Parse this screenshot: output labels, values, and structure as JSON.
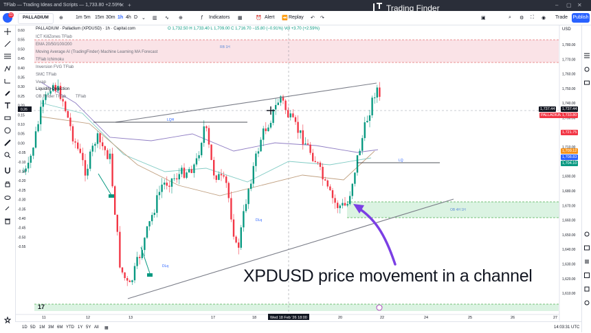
{
  "browser": {
    "tab_title": "TFlab — Trading Ideas and Scripts —",
    "tab_price": "1,733.80 +2.59%",
    "new_tab": "+"
  },
  "toolbar": {
    "notifications": "11",
    "symbol": "PALLADIUM",
    "timeframes": [
      "1m",
      "5m",
      "15m",
      "30m",
      "1h",
      "4h",
      "D"
    ],
    "active_timeframe": "1h",
    "indicators_label": "Indicators",
    "alert_label": "Alert",
    "replay_label": "Replay",
    "trade_label": "Trade",
    "publish_label": "Publish"
  },
  "watermark": {
    "brand": "Trading Finder"
  },
  "legend": {
    "title": "PALLADIUM · Palladium (XPDUSD) · 1h · Capital.com",
    "ohlc": "O 1,732.50 H 1,733.40 L 1,709.00 C 1,716.70 −15.80 (−0.91%) Vol +3.70 (+2.59%)",
    "currency": "USD",
    "indicators": [
      "ICT KillZones TFlab",
      "EMA 20/50/100/200",
      "Moving Average AI (TradingFinder) Machine Learning MA Forecast",
      "TFlab Ichimoku",
      "Inversion FVG TFlab",
      "SMC TFlab",
      "Vwap",
      "Liquidity Detection",
      "OB Finder TFlab",
      "TFlab"
    ]
  },
  "chart": {
    "annotations": {
      "rb_1h": "RB 1H",
      "lqh": "LQH",
      "lq": "LQ",
      "ob_4h": "OB 4H 1H",
      "dlq_a": "DLq",
      "dlq_b": "DLq"
    },
    "left_axis": [
      "0.60",
      "0.55",
      "0.50",
      "0.45",
      "0.40",
      "0.35",
      "0.30",
      "0.25",
      "0.20",
      "0.15",
      "0.10",
      "0.05",
      "0.00",
      "-0.05",
      "-0.10",
      "-0.15",
      "-0.20",
      "-0.25",
      "-0.30",
      "-0.35",
      "-0.40",
      "-0.45",
      "-0.50",
      "-0.55"
    ],
    "left_axis_current": "0.26",
    "right_axis": [
      "1,780.00",
      "1,770.00",
      "1,760.00",
      "1,750.00",
      "1,740.00",
      "1,730.00",
      "1,720.00",
      "1,710.00",
      "1,700.00",
      "1,690.00",
      "1,680.00",
      "1,670.00",
      "1,660.00",
      "1,650.00",
      "1,640.00",
      "1,630.00",
      "1,620.00",
      "1,610.00"
    ],
    "price_labels": {
      "a": "1,737.44",
      "symbol": "PALLADIUM",
      "b": "1,733.80",
      "c": "1,721.75",
      "d": "1,709.12",
      "e": "1,708.83",
      "f": "1,704.10"
    },
    "label_colors": {
      "up": "#089981",
      "down": "#f23645",
      "blue": "#2962ff",
      "orange": "#f7931a",
      "dark": "#131722"
    },
    "time_axis": [
      "11",
      "12",
      "13",
      "17",
      "18",
      "20",
      "22",
      "24",
      "25",
      "26",
      "27"
    ],
    "time_highlight": "Wed 18 Feb '26  18:00",
    "caption": "XPDUSD price movement in a channel"
  },
  "bottom": {
    "ranges": [
      "1D",
      "5D",
      "1M",
      "3M",
      "6M",
      "YTD",
      "1Y",
      "5Y",
      "All"
    ],
    "clock": "14:03:31 UTC"
  }
}
